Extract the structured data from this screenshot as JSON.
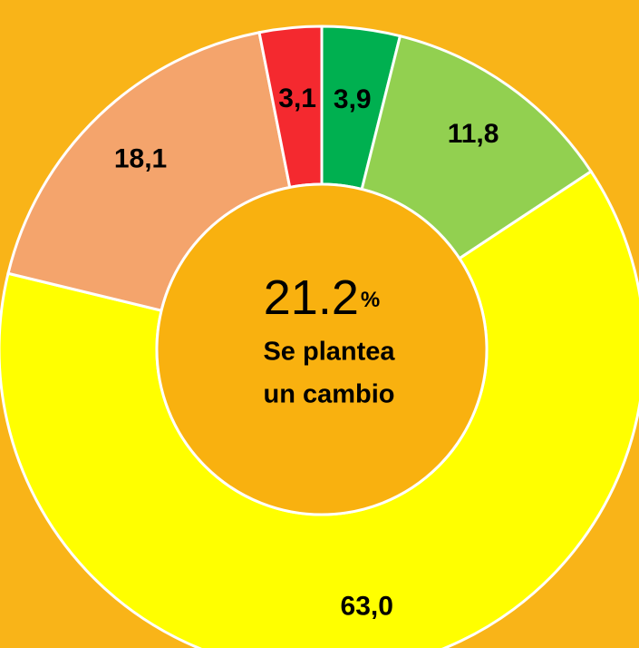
{
  "chart_data": {
    "type": "donut",
    "categories": [
      null,
      null,
      null,
      null,
      null
    ],
    "values": [
      3.9,
      11.8,
      63.0,
      18.1,
      3.1
    ],
    "value_labels": [
      "3,9",
      "11,8",
      "63,0",
      "18,1",
      "3,1"
    ],
    "colors": [
      "#00b050",
      "#92d050",
      "#ffff00",
      "#f4a46c",
      "#f4292f"
    ],
    "center": {
      "value": "21.2",
      "unit": "%",
      "caption": [
        "Se plantea",
        "un cambio"
      ]
    }
  }
}
